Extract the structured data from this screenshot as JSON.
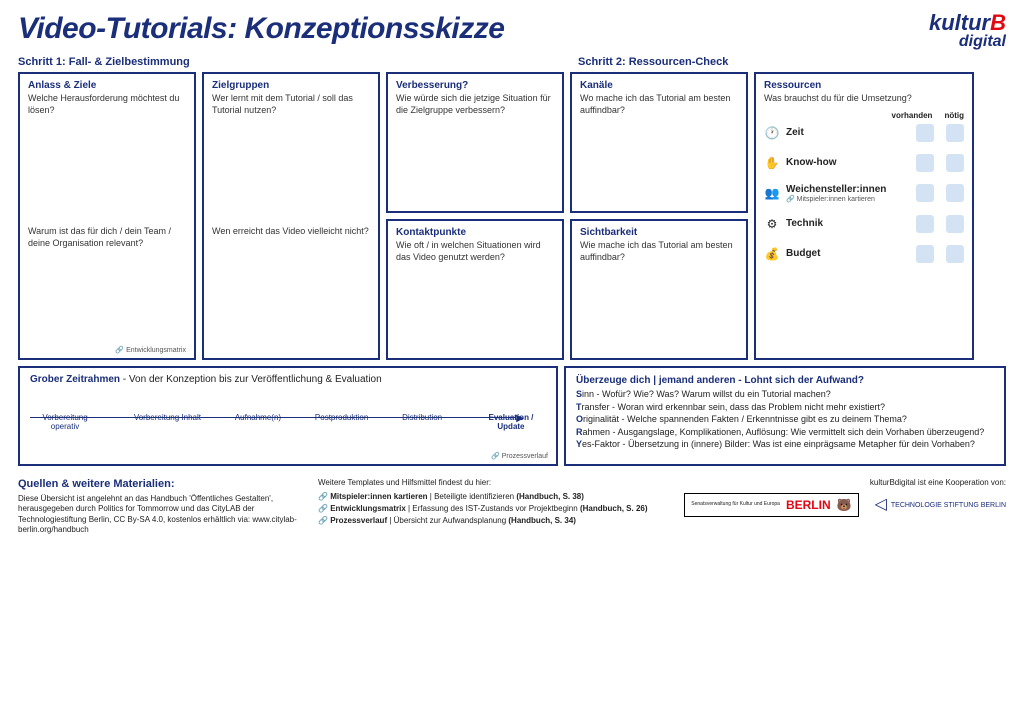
{
  "title": "Video-Tutorials: Konzeptionsskizze",
  "logo": {
    "kultur": "kultur",
    "b": "B",
    "digital": "digital"
  },
  "step1": "Schritt 1: Fall- & Zielbestimmung",
  "step2": "Schritt 2: Ressourcen-Check",
  "boxes": {
    "anlass": {
      "title": "Anlass & Ziele",
      "q1": "Welche Herausforderung möchtest du lösen?",
      "q2": "Warum ist das für dich / dein Team / deine Organisation relevant?",
      "tag": "Entwicklungsmatrix"
    },
    "ziel": {
      "title": "Zielgruppen",
      "q1": "Wer lernt mit dem Tutorial / soll das Tutorial nutzen?",
      "q2": "Wen erreicht das Video vielleicht nicht?"
    },
    "verb": {
      "title": "Verbesserung?",
      "q1": "Wie würde sich die jetzige Situation für die Zielgruppe verbessern?"
    },
    "kontakt": {
      "title": "Kontaktpunkte",
      "q1": "Wie oft / in welchen Situationen wird das Video genutzt werden?"
    },
    "kanal": {
      "title": "Kanäle",
      "q1": "Wo mache ich das Tutorial am besten auffindbar?"
    },
    "sicht": {
      "title": "Sichtbarkeit",
      "q1": "Wie mache ich das Tutorial am besten auffindbar?"
    },
    "res": {
      "title": "Ressourcen",
      "q1": "Was brauchst du für die Umsetzung?"
    }
  },
  "resCols": {
    "a": "vorhanden",
    "b": "nötig"
  },
  "resItems": [
    {
      "icon": "🕐",
      "label": "Zeit"
    },
    {
      "icon": "✋",
      "label": "Know-how"
    },
    {
      "icon": "👥",
      "label": "Weichensteller:innen",
      "sub": "🔗 Mitspieler:innen kartieren"
    },
    {
      "icon": "⚙",
      "label": "Technik"
    },
    {
      "icon": "💰",
      "label": "Budget"
    }
  ],
  "timeline": {
    "title_b": "Grober Zeitrahmen",
    "title_r": " -  Von der Konzeption bis zur Veröffentlichung & Evaluation",
    "stages": [
      "Vorbereitung operativ",
      "Vorbereitung Inhalt",
      "Aufnahme(n)",
      "Postproduktion",
      "Distribution",
      "Evaluation / Update"
    ],
    "tag": "Prozessverlauf"
  },
  "story": {
    "head": "Überzeuge dich | jemand anderen - Lohnt sich der Aufwand?",
    "lines": [
      {
        "b": "S",
        "t": "inn - Wofür? Wie? Was? Warum willst du ein Tutorial machen?"
      },
      {
        "b": "T",
        "t": "ransfer - Woran wird erkennbar sein, dass das Problem nicht mehr existiert?"
      },
      {
        "b": "O",
        "t": "riginalität - Welche spannenden Fakten / Erkenntnisse gibt es zu deinem Thema?"
      },
      {
        "b": "R",
        "t": "ahmen - Ausgangslage, Komplikationen, Auflösung: Wie vermittelt sich dein Vorhaben überzeugend?"
      },
      {
        "b": "Y",
        "t": "es-Faktor - Übersetzung in (innere) Bilder: Was ist eine einprägsame Metapher für dein Vorhaben?"
      }
    ]
  },
  "footer": {
    "sources_h": "Quellen & weitere Materialien:",
    "sources_p": "Diese Übersicht ist angelehnt an das Handbuch 'Öffentliches Gestalten', herausgegeben durch Politics for Tommorrow und das CityLAB der Technologiestiftung Berlin, CC By-SA 4.0, kostenlos erhältlich via: www.citylab-berlin.org/handbuch",
    "mid_p": "Weitere Templates und Hilfsmittel findest du hier:",
    "tpl1": {
      "a": "Mitspieler:innen kartieren",
      "b": "  |  Beteiligte identifizieren ",
      "c": "(Handbuch, S. 38)"
    },
    "tpl2": {
      "a": "Entwicklungsmatrix",
      "b": "  |  Erfassung des IST-Zustands vor Projektbeginn ",
      "c": "(Handbuch, S. 26)"
    },
    "tpl3": {
      "a": "Prozessverlauf",
      "b": "  |  Übersicht zur Aufwandsplanung ",
      "c": "(Handbuch, S. 34)"
    },
    "coop": "kulturBdigital ist eine Kooperation von:",
    "sen": "Senatsverwaltung für Kultur und Europa",
    "berlin": "BERLIN",
    "ts": "TECHNOLOGIE STIFTUNG BERLIN"
  }
}
